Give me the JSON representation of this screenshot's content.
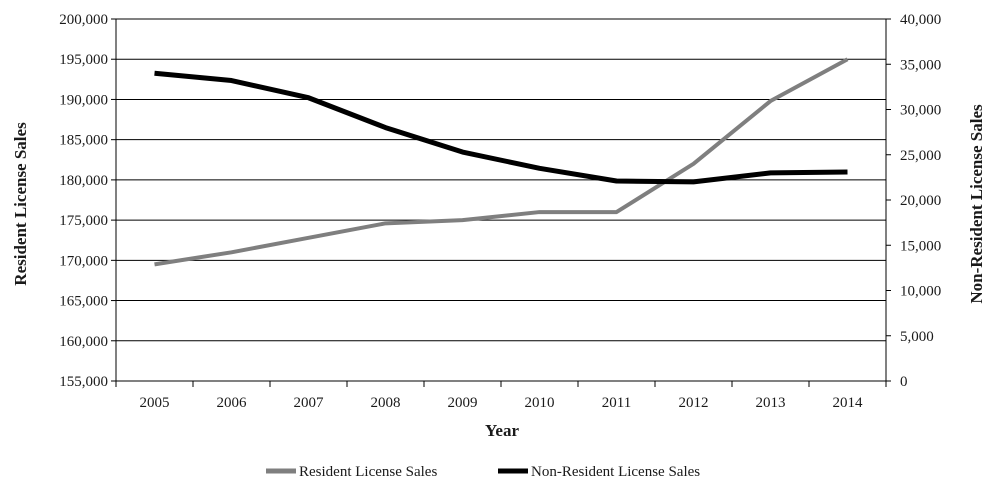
{
  "chart_data": {
    "type": "line",
    "title": "",
    "xlabel": "Year",
    "ylabel": "Resident License Sales",
    "y2label": "Non-Resident License Sales",
    "categories": [
      "2005",
      "2006",
      "2007",
      "2008",
      "2009",
      "2010",
      "2011",
      "2012",
      "2013",
      "2014"
    ],
    "ylim": [
      155000,
      200000
    ],
    "y2lim": [
      0,
      40000
    ],
    "yticks": [
      "155,000",
      "160,000",
      "165,000",
      "170,000",
      "175,000",
      "180,000",
      "185,000",
      "190,000",
      "195,000",
      "200,000"
    ],
    "y2ticks": [
      "0",
      "5,000",
      "10,000",
      "15,000",
      "20,000",
      "25,000",
      "30,000",
      "35,000",
      "40,000"
    ],
    "grid": true,
    "legend_position": "bottom",
    "series": [
      {
        "name": "Resident License Sales",
        "axis": "left",
        "color": "#7f7f7f",
        "values": [
          169500,
          171000,
          172800,
          174600,
          175000,
          176000,
          176000,
          182000,
          189800,
          195000
        ]
      },
      {
        "name": "Non-Resident License Sales",
        "axis": "right",
        "color": "#000000",
        "values": [
          34000,
          33200,
          31300,
          28000,
          25300,
          23500,
          22100,
          22000,
          23000,
          23100
        ]
      }
    ]
  }
}
